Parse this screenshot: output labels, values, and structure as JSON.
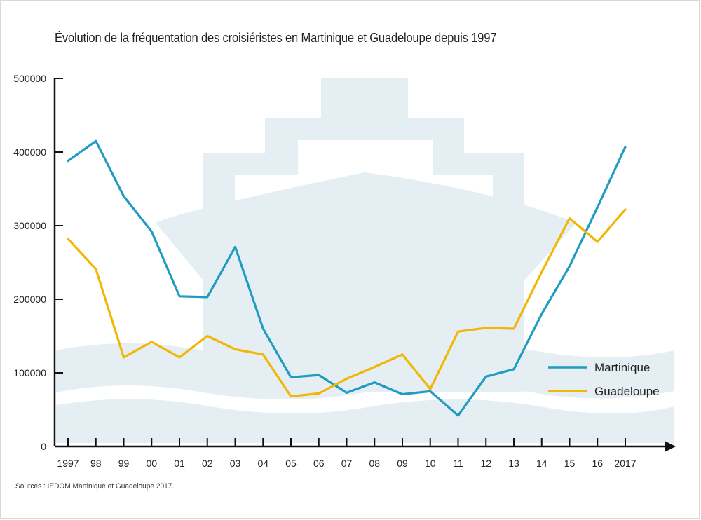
{
  "chart_data": {
    "type": "line",
    "title": "Évolution de la fréquentation des croisiéristes en Martinique et Guadeloupe depuis 1997",
    "source": "Sources : IEDOM Martinique et Guadeloupe 2017.",
    "categories": [
      "1997",
      "98",
      "99",
      "00",
      "01",
      "02",
      "03",
      "04",
      "05",
      "06",
      "07",
      "08",
      "09",
      "10",
      "11",
      "12",
      "13",
      "14",
      "15",
      "16",
      "2017"
    ],
    "ylim": [
      0,
      500000
    ],
    "yticks": [
      0,
      100000,
      200000,
      300000,
      400000,
      500000
    ],
    "ytick_labels": [
      "0",
      "100000",
      "200000",
      "300000",
      "400000",
      "500000"
    ],
    "xlabel": "",
    "ylabel": "",
    "legend_position": "right",
    "series": [
      {
        "name": "Martinique",
        "color": "#1f9cc0",
        "values": [
          388000,
          415000,
          340000,
          292000,
          204000,
          203000,
          271000,
          160000,
          94000,
          97000,
          73000,
          87000,
          71000,
          75000,
          42000,
          95000,
          105000,
          180000,
          245000,
          325000,
          407000
        ]
      },
      {
        "name": "Guadeloupe",
        "color": "#f2b705",
        "values": [
          282000,
          241000,
          121000,
          142000,
          121000,
          150000,
          132000,
          125000,
          68000,
          72000,
          92000,
          108000,
          125000,
          78000,
          156000,
          161000,
          160000,
          237000,
          310000,
          278000,
          322000
        ]
      }
    ]
  }
}
